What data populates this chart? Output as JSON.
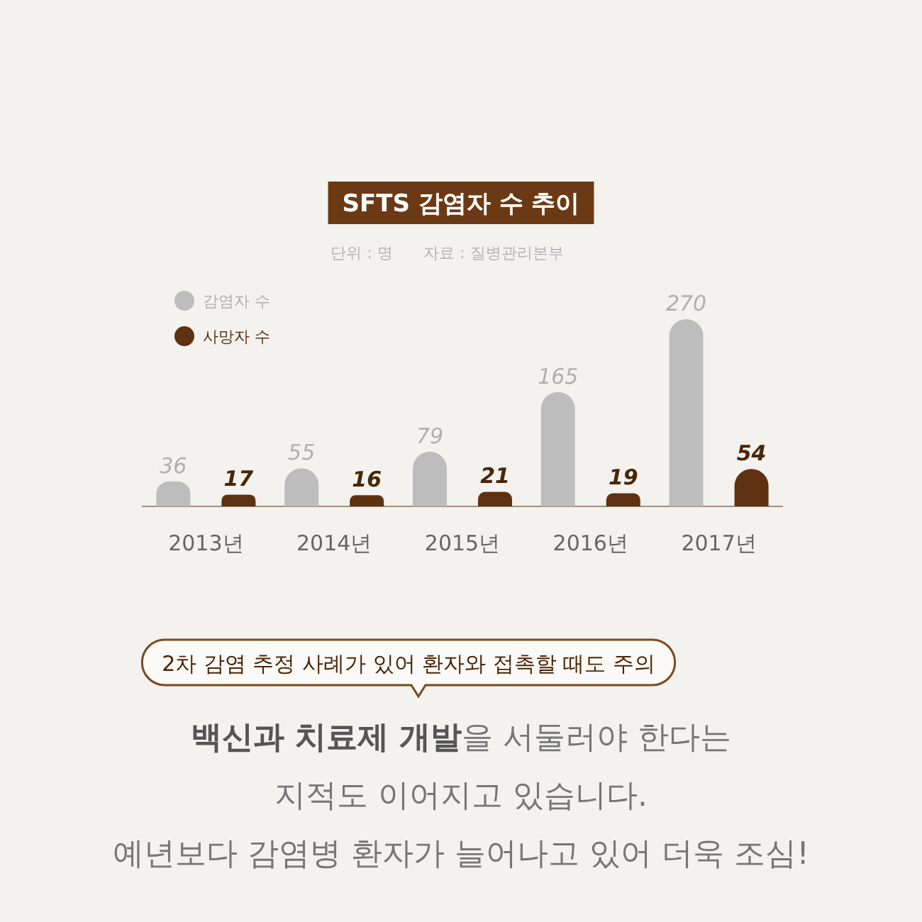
{
  "chart_data": {
    "type": "bar",
    "title": "SFTS 감염자 수 추이",
    "subtitle": "단위 : 명",
    "categories": [
      "2013년",
      "2014년",
      "2015년",
      "2016년",
      "2017년"
    ],
    "series": [
      {
        "name": "감염자 수",
        "color": "#bdbdbd",
        "values": [
          36,
          55,
          79,
          165,
          270
        ]
      },
      {
        "name": "사망자 수",
        "color": "#5e3210",
        "values": [
          17,
          16,
          21,
          19,
          54
        ]
      }
    ],
    "data_labels": true,
    "legend": "top left",
    "annotations": [
      "자료 : 질병관리본부",
      "2차 감염 추정 사례가 있어 환자와 접촉할 때도 주의",
      "**백신과 치료제 개발**을 서둘러야 한다는",
      "지적도 이어지고 있습니다.",
      "예년보다 감염병 환자가 늘어나고 있어 더욱 조심!"
    ]
  }
}
